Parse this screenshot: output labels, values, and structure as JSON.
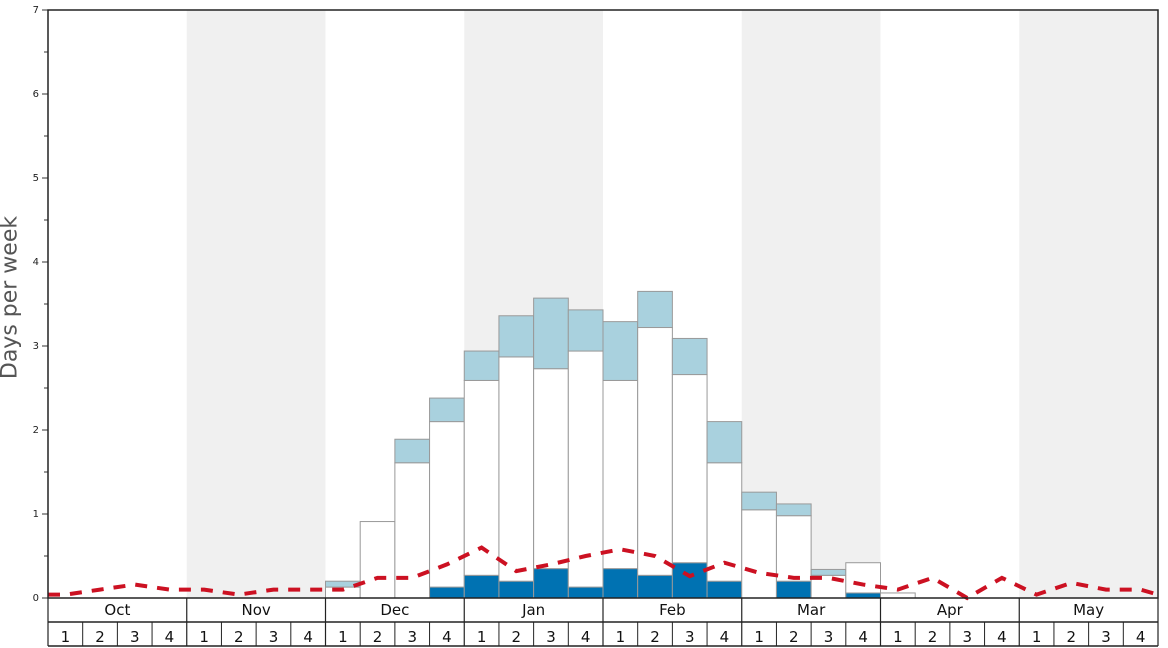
{
  "chart_data": {
    "type": "bar",
    "ylabel": "Days per week",
    "ylim": [
      0,
      7
    ],
    "yticks": [
      "0",
      "1",
      "2",
      "3",
      "4",
      "5",
      "6",
      "7"
    ],
    "months": [
      "Oct",
      "Nov",
      "Dec",
      "Jan",
      "Feb",
      "Mar",
      "Apr",
      "May"
    ],
    "weeks": [
      "1",
      "2",
      "3",
      "4"
    ],
    "stack_layers": [
      "dark_blue",
      "white",
      "light_blue"
    ],
    "colors": {
      "dark_blue": "#0072b2",
      "white": "#ffffff",
      "light_blue": "#a9d1de",
      "dashed_line": "#cc1122",
      "shade": "#f0f0f0",
      "bar_border": "#999999"
    },
    "series": [
      {
        "key": "dark_blue",
        "values": [
          0,
          0,
          0,
          0,
          0,
          0,
          0,
          0,
          0,
          0,
          0,
          0.13,
          0.27,
          0.2,
          0.35,
          0.13,
          0.35,
          0.27,
          0.42,
          0.2,
          0,
          0.2,
          0,
          0.06,
          0,
          0,
          0,
          0,
          0,
          0,
          0,
          0
        ]
      },
      {
        "key": "white",
        "values": [
          0,
          0,
          0,
          0,
          0,
          0,
          0,
          0,
          0.13,
          0.91,
          1.61,
          1.97,
          2.32,
          2.67,
          2.38,
          2.81,
          2.24,
          2.95,
          2.24,
          1.41,
          1.05,
          0.78,
          0.27,
          0.36,
          0.06,
          0,
          0,
          0,
          0,
          0,
          0,
          0
        ]
      },
      {
        "key": "light_blue",
        "values": [
          0,
          0,
          0,
          0,
          0,
          0,
          0,
          0,
          0.07,
          0,
          0.28,
          0.28,
          0.35,
          0.49,
          0.84,
          0.49,
          0.7,
          0.43,
          0.43,
          0.49,
          0.21,
          0.14,
          0.07,
          0,
          0,
          0,
          0,
          0,
          0,
          0,
          0,
          0
        ]
      }
    ],
    "line": {
      "style": "dashed",
      "values": [
        0.04,
        0.1,
        0.16,
        0.1,
        0.1,
        0.04,
        0.1,
        0.1,
        0.1,
        0.24,
        0.24,
        0.4,
        0.6,
        0.32,
        0.4,
        0.5,
        0.58,
        0.5,
        0.26,
        0.42,
        0.3,
        0.24,
        0.24,
        0.16,
        0.1,
        0.24,
        0,
        0.24,
        0.04,
        0.18,
        0.1,
        0.1
      ]
    }
  }
}
